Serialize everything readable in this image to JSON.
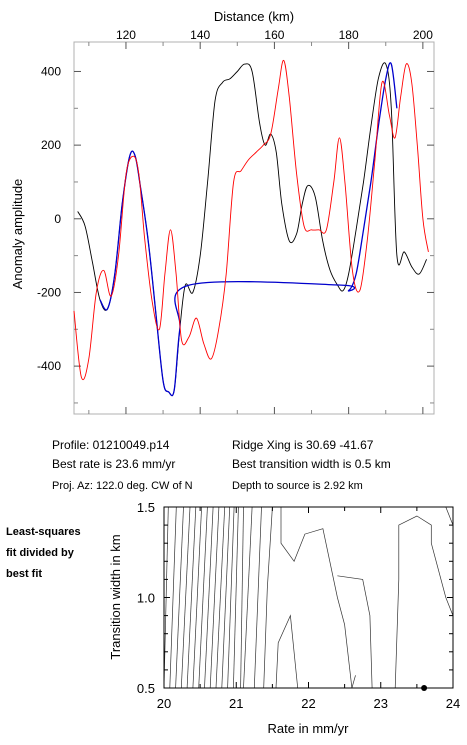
{
  "chart_data": [
    {
      "type": "line",
      "title": "",
      "xlabel": "Distance (km)",
      "ylabel": "Anomaly amplitude",
      "xlim": [
        106,
        203
      ],
      "ylim": [
        -530,
        480
      ],
      "x_ticks": [
        "120",
        "140",
        "160",
        "180",
        "200"
      ],
      "x_tick_values": [
        120,
        140,
        160,
        180,
        200
      ],
      "y_ticks": [
        "400",
        "200",
        "0",
        "-200",
        "-400"
      ],
      "y_tick_values": [
        400,
        200,
        0,
        -200,
        -400
      ],
      "grid": false,
      "series": [
        {
          "color": "#000000",
          "x": [
            107,
            109,
            111,
            113,
            115,
            117,
            119,
            121,
            122.5,
            124,
            126,
            128,
            130,
            131.5,
            133,
            134.5,
            136,
            138,
            140,
            142,
            144,
            146,
            148,
            150,
            152,
            154,
            156,
            157.5,
            159,
            160.5,
            162,
            164,
            166,
            167.5,
            169,
            171,
            173,
            175,
            177,
            178.5,
            180,
            182,
            184,
            186,
            188,
            190,
            191.5,
            193,
            195,
            197,
            199,
            201
          ],
          "y": [
            20,
            -20,
            -120,
            -220,
            -245,
            -150,
            40,
            170,
            170,
            80,
            -60,
            -250,
            -440,
            -470,
            -465,
            -300,
            -180,
            -200,
            -100,
            100,
            320,
            370,
            380,
            400,
            420,
            400,
            260,
            200,
            230,
            180,
            40,
            -60,
            -40,
            40,
            90,
            60,
            -60,
            -140,
            -180,
            -195,
            -150,
            -30,
            100,
            250,
            380,
            420,
            300,
            -100,
            -90,
            -130,
            -150,
            -110
          ]
        },
        {
          "color": "#0000cc",
          "x": [
            113,
            115,
            117,
            119,
            121,
            122.5,
            124,
            126,
            128,
            130,
            131.5,
            133,
            134.5,
            137,
            178,
            180,
            182,
            184,
            186,
            188,
            190,
            191.5,
            193
          ],
          "y": [
            -220,
            -245,
            -150,
            40,
            170,
            170,
            80,
            -60,
            -250,
            -440,
            -470,
            -465,
            -300,
            -180,
            -180,
            -195,
            -150,
            -30,
            100,
            250,
            380,
            420,
            300
          ]
        },
        {
          "color": "#ff0000",
          "x": [
            106,
            108,
            110,
            112,
            114,
            116,
            118,
            120,
            122,
            123.5,
            125,
            127,
            129,
            130.5,
            132,
            133.5,
            135,
            137,
            139,
            141,
            143,
            145,
            147,
            149,
            151,
            153,
            155,
            157,
            159,
            161,
            162.5,
            164,
            166,
            168,
            170,
            172,
            174,
            176,
            177.5,
            179,
            181,
            183,
            185,
            187,
            189,
            191,
            192.5,
            194,
            195.5,
            197,
            198.5,
            200,
            201.5
          ],
          "y": [
            -250,
            -430,
            -380,
            -200,
            -140,
            -210,
            -100,
            120,
            170,
            120,
            -50,
            -220,
            -300,
            -150,
            -30,
            -150,
            -330,
            -320,
            -270,
            -340,
            -380,
            -300,
            -150,
            100,
            130,
            160,
            180,
            200,
            230,
            350,
            430,
            330,
            120,
            -20,
            -30,
            -30,
            -30,
            100,
            220,
            100,
            -140,
            -195,
            -60,
            150,
            370,
            280,
            220,
            330,
            420,
            370,
            200,
            0,
            -90
          ]
        }
      ]
    },
    {
      "type": "contour",
      "title": "",
      "xlabel": "Rate in mm/yr",
      "ylabel": "Transition width in km",
      "xlim": [
        20,
        24
      ],
      "ylim": [
        0.5,
        1.5
      ],
      "x_ticks": [
        "20",
        "21",
        "22",
        "23",
        "24"
      ],
      "x_tick_values": [
        20,
        21,
        22,
        23,
        24
      ],
      "y_ticks": [
        "1.5",
        "1.0",
        "0.5"
      ],
      "y_tick_values": [
        1.5,
        1.0,
        0.5
      ],
      "contour_lines": [
        [
          [
            20.0,
            0.5
          ],
          [
            20.06,
            1.5
          ]
        ],
        [
          [
            20.08,
            0.5
          ],
          [
            20.17,
            1.5
          ]
        ],
        [
          [
            20.16,
            0.5
          ],
          [
            20.27,
            1.5
          ]
        ],
        [
          [
            20.24,
            0.5
          ],
          [
            20.36,
            1.5
          ]
        ],
        [
          [
            20.32,
            0.5
          ],
          [
            20.44,
            1.5
          ]
        ],
        [
          [
            20.4,
            0.5
          ],
          [
            20.52,
            1.5
          ]
        ],
        [
          [
            20.48,
            0.5
          ],
          [
            20.6,
            1.5
          ]
        ],
        [
          [
            20.56,
            0.5
          ],
          [
            20.68,
            1.5
          ]
        ],
        [
          [
            20.64,
            0.5
          ],
          [
            20.76,
            1.5
          ]
        ],
        [
          [
            20.72,
            0.5
          ],
          [
            20.84,
            1.5
          ]
        ],
        [
          [
            20.8,
            0.5
          ],
          [
            20.91,
            1.5
          ]
        ],
        [
          [
            20.88,
            0.5
          ],
          [
            20.97,
            1.5
          ]
        ],
        [
          [
            20.96,
            0.5
          ],
          [
            21.03,
            1.5
          ]
        ],
        [
          [
            21.06,
            0.5
          ],
          [
            21.1,
            1.5
          ]
        ],
        [
          [
            21.1,
            0.5
          ],
          [
            21.16,
            1.0
          ],
          [
            21.22,
            1.5
          ]
        ],
        [
          [
            21.25,
            0.5
          ],
          [
            21.3,
            1.0
          ],
          [
            21.35,
            1.5
          ]
        ],
        [
          [
            21.38,
            0.5
          ],
          [
            21.43,
            1.05
          ],
          [
            21.5,
            1.5
          ]
        ],
        [
          [
            21.55,
            0.5
          ],
          [
            21.58,
            0.75
          ],
          [
            21.75,
            0.9
          ],
          [
            21.85,
            0.5
          ]
        ],
        [
          [
            21.62,
            1.5
          ],
          [
            21.62,
            1.3
          ],
          [
            21.8,
            1.2
          ],
          [
            21.95,
            1.35
          ],
          [
            22.2,
            1.38
          ],
          [
            22.4,
            1.0
          ],
          [
            22.5,
            0.85
          ],
          [
            22.6,
            0.5
          ]
        ],
        [
          [
            22.4,
            1.12
          ],
          [
            22.75,
            1.1
          ],
          [
            22.85,
            0.9
          ],
          [
            22.88,
            0.5
          ]
        ],
        [
          [
            22.6,
            0.5
          ],
          [
            22.65,
            0.57
          ]
        ],
        [
          [
            23.2,
            0.5
          ],
          [
            23.25,
            1.1
          ],
          [
            23.25,
            1.4
          ],
          [
            23.5,
            1.45
          ],
          [
            23.7,
            1.4
          ],
          [
            23.7,
            1.3
          ],
          [
            23.9,
            1.0
          ],
          [
            24.0,
            0.9
          ]
        ],
        [
          [
            23.9,
            1.5
          ],
          [
            24.0,
            1.4
          ]
        ]
      ],
      "best_fit": {
        "x": 23.6,
        "y": 0.5
      }
    }
  ],
  "info": {
    "profile": "Profile: 01210049.p14",
    "best_rate": "Best rate is 23.6 mm/yr",
    "proj_az": "Proj. Az: 122.0 deg. CW of N",
    "ridge_xing": "Ridge Xing is 30.69 -41.67",
    "best_transition": "Best transition width is 0.5 km",
    "depth": "Depth to source is   2.92 km"
  },
  "side_label": [
    "Least-squares",
    "fit divided by",
    "best fit"
  ]
}
